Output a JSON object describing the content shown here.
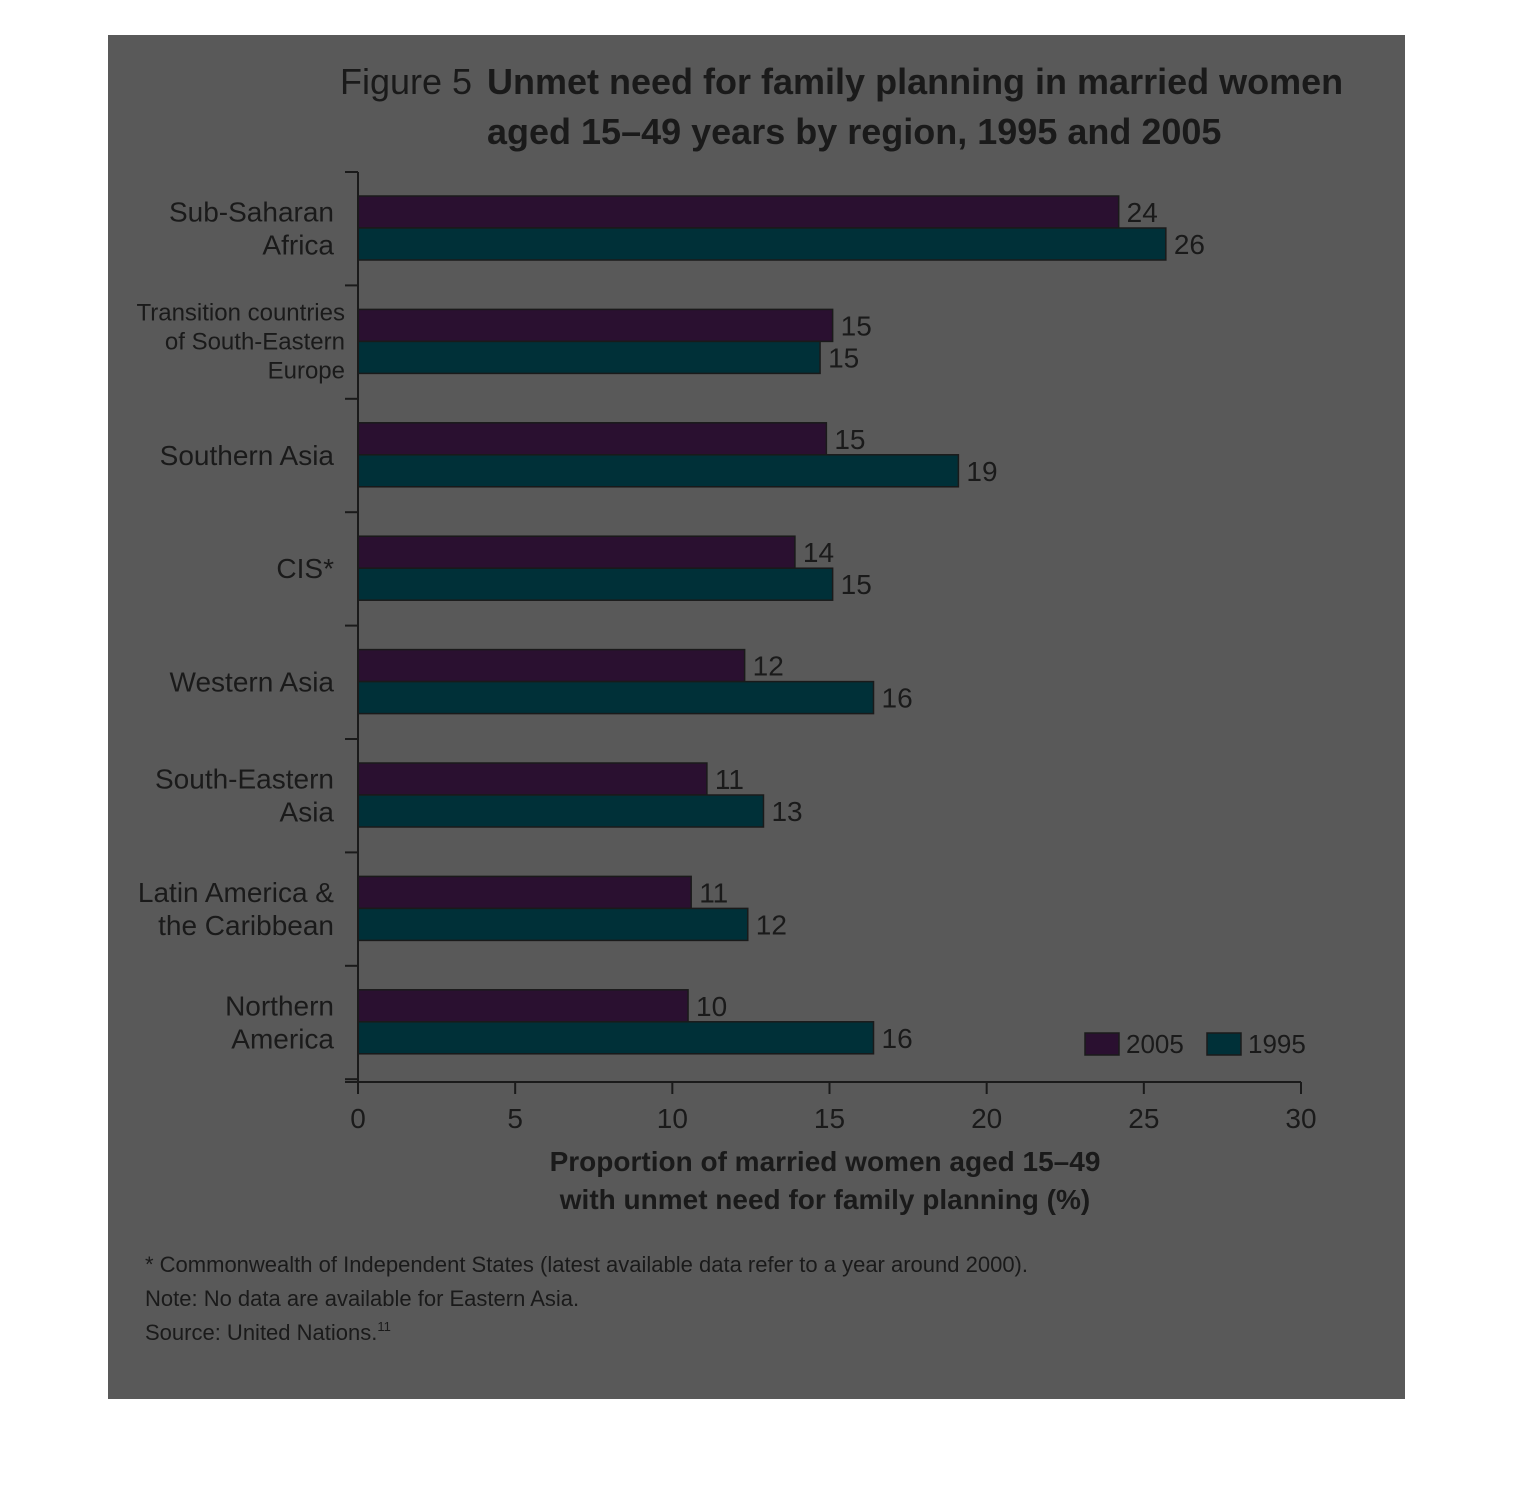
{
  "figure": {
    "label": "Figure 5",
    "title_lines": [
      "Unmet need for family planning in married women",
      "aged 15–49 years by region, 1995 and 2005"
    ]
  },
  "notes": {
    "footnote": "* Commonwealth of Independent States (latest available data refer to a year around 2000).",
    "note": "Note: No data are available for Eastern Asia.",
    "source": "Source: United Nations.",
    "source_ref": "11"
  },
  "chart_data": {
    "type": "bar",
    "orientation": "horizontal",
    "categories": [
      [
        "Sub-Saharan",
        "Africa"
      ],
      [
        "Transition countries",
        "of South-Eastern",
        "Europe"
      ],
      [
        "Southern Asia"
      ],
      [
        "CIS*"
      ],
      [
        "Western Asia"
      ],
      [
        "South-Eastern",
        "Asia"
      ],
      [
        "Latin America &",
        "the Caribbean"
      ],
      [
        "Northern",
        "America"
      ]
    ],
    "series": [
      {
        "name": "2005",
        "color": "#2a1030",
        "values": [
          24,
          15,
          15,
          14,
          12,
          11,
          11,
          10
        ],
        "bar_values": [
          24.2,
          15.1,
          14.9,
          13.9,
          12.3,
          11.1,
          10.6,
          10.5
        ]
      },
      {
        "name": "1995",
        "color": "#003038",
        "values": [
          26,
          15,
          19,
          15,
          16,
          13,
          12,
          16
        ],
        "bar_values": [
          25.7,
          14.7,
          19.1,
          15.1,
          16.4,
          12.9,
          12.4,
          16.4
        ]
      }
    ],
    "x_ticks": [
      0,
      5,
      10,
      15,
      20,
      25,
      30
    ],
    "xlim": [
      0,
      30
    ],
    "xlabel_lines": [
      "Proportion of married women aged 15–49",
      "with unmet need for family planning (%)"
    ],
    "legend_position": "bottom-right",
    "grid": false
  }
}
